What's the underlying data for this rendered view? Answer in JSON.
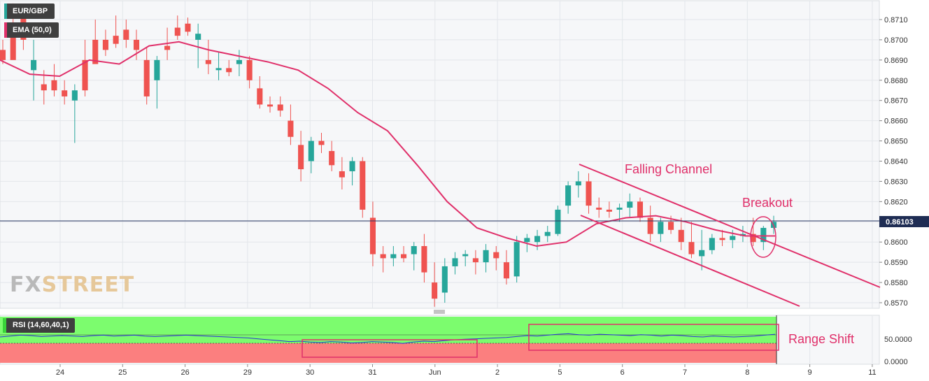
{
  "legend": {
    "symbol": "EUR/GBP",
    "ema_label": "EMA (50,0)",
    "rsi_label": "RSI (14,60,40,1)"
  },
  "logo": {
    "part1": "FX",
    "part2": "STREET"
  },
  "price_badge": "0.86103",
  "annotations": {
    "channel": "Falling Channel",
    "breakout": "Breakout",
    "range_shift": "Range Shift"
  },
  "colors": {
    "up": "#26a69a",
    "down": "#ef5350",
    "ema": "#e0306a",
    "annotation": "#e0306a",
    "rsi_line": "#2c35d6",
    "rsi_bull_zone": "#7cfc6e",
    "rsi_bear_zone": "#fb7f7f",
    "price_line": "#2a3a66"
  },
  "chart_data": [
    {
      "type": "candlestick",
      "title": "EUR/GBP",
      "x_ticks": [
        "24",
        "25",
        "26",
        "29",
        "30",
        "31",
        "Jun",
        "2",
        "5",
        "6",
        "7",
        "8",
        "9",
        "11"
      ],
      "y_ticks": [
        "0.8710",
        "0.8700",
        "0.8690",
        "0.8680",
        "0.8670",
        "0.8660",
        "0.8650",
        "0.8640",
        "0.8630",
        "0.8620",
        "0.8610",
        "0.8600",
        "0.8590",
        "0.8580",
        "0.8570"
      ],
      "ylim": [
        0.8567,
        0.8718
      ],
      "grid": true,
      "last_price": 0.86103,
      "series": [
        {
          "name": "EMA (50,0)",
          "points": [
            [
              "23 00:00",
              0.869
            ],
            [
              "24 00:00",
              0.8683
            ],
            [
              "24 06:00",
              0.8682
            ],
            [
              "25 00:00",
              0.869
            ],
            [
              "25 12:00",
              0.8688
            ],
            [
              "26 00:00",
              0.8697
            ],
            [
              "26 06:00",
              0.8699
            ],
            [
              "26 12:00",
              0.8695
            ],
            [
              "29 00:00",
              0.8692
            ],
            [
              "29 06:00",
              0.8689
            ],
            [
              "29 12:00",
              0.8685
            ],
            [
              "30 00:00",
              0.8676
            ],
            [
              "30 12:00",
              0.8664
            ],
            [
              "31 00:00",
              0.8655
            ],
            [
              "31 12:00",
              0.8638
            ],
            [
              "Jun 00:00",
              0.862
            ],
            [
              "Jun 12:00",
              0.8607
            ],
            [
              "2 00:00",
              0.8602
            ],
            [
              "2 12:00",
              0.8598
            ],
            [
              "5 00:00",
              0.86
            ],
            [
              "5 12:00",
              0.8609
            ],
            [
              "6 00:00",
              0.8612
            ],
            [
              "6 12:00",
              0.8613
            ],
            [
              "7 00:00",
              0.861
            ],
            [
              "7 12:00",
              0.8606
            ],
            [
              "8 00:00",
              0.8603
            ],
            [
              "8 09:00",
              0.8603
            ]
          ]
        }
      ],
      "candles_shape": [
        [
          0.8695,
          0.87,
          0.8688,
          0.869
        ],
        [
          0.8705,
          0.8718,
          0.8696,
          0.869
        ],
        [
          0.8712,
          0.8716,
          0.8695,
          0.87
        ],
        [
          0.8685,
          0.87,
          0.867,
          0.869
        ],
        [
          0.8678,
          0.8685,
          0.8668,
          0.8675
        ],
        [
          0.868,
          0.8688,
          0.8672,
          0.8675
        ],
        [
          0.8675,
          0.868,
          0.8668,
          0.8672
        ],
        [
          0.867,
          0.8678,
          0.8649,
          0.8675
        ],
        [
          0.869,
          0.87,
          0.8672,
          0.8675
        ],
        [
          0.87,
          0.871,
          0.869,
          0.8688
        ],
        [
          0.87,
          0.8705,
          0.8692,
          0.8695
        ],
        [
          0.8702,
          0.8712,
          0.8696,
          0.8698
        ],
        [
          0.8705,
          0.871,
          0.8696,
          0.87
        ],
        [
          0.87,
          0.8705,
          0.869,
          0.8695
        ],
        [
          0.869,
          0.8696,
          0.8668,
          0.8672
        ],
        [
          0.868,
          0.8692,
          0.8666,
          0.869
        ],
        [
          0.8697,
          0.8706,
          0.869,
          0.8695
        ],
        [
          0.8706,
          0.8712,
          0.87,
          0.8702
        ],
        [
          0.8708,
          0.8711,
          0.8702,
          0.8704
        ],
        [
          0.87,
          0.8708,
          0.8686,
          0.8703
        ],
        [
          0.869,
          0.87,
          0.8683,
          0.8688
        ],
        [
          0.8685,
          0.8694,
          0.868,
          0.8686
        ],
        [
          0.8686,
          0.869,
          0.8682,
          0.8684
        ],
        [
          0.8688,
          0.8695,
          0.8682,
          0.869
        ],
        [
          0.869,
          0.8692,
          0.8676,
          0.868
        ],
        [
          0.8676,
          0.8682,
          0.8666,
          0.8668
        ],
        [
          0.8668,
          0.8672,
          0.8664,
          0.8667
        ],
        [
          0.8668,
          0.8672,
          0.8662,
          0.8665
        ],
        [
          0.866,
          0.8668,
          0.8648,
          0.8652
        ],
        [
          0.8648,
          0.8655,
          0.863,
          0.8636
        ],
        [
          0.864,
          0.8652,
          0.8634,
          0.865
        ],
        [
          0.865,
          0.8654,
          0.8644,
          0.8648
        ],
        [
          0.8645,
          0.865,
          0.8635,
          0.8638
        ],
        [
          0.8635,
          0.8642,
          0.8626,
          0.8632
        ],
        [
          0.8635,
          0.8642,
          0.8628,
          0.864
        ],
        [
          0.864,
          0.8642,
          0.8612,
          0.8616
        ],
        [
          0.8612,
          0.862,
          0.8588,
          0.8594
        ],
        [
          0.8594,
          0.8598,
          0.8585,
          0.8592
        ],
        [
          0.8592,
          0.8598,
          0.8588,
          0.8594
        ],
        [
          0.8594,
          0.8598,
          0.859,
          0.8592
        ],
        [
          0.8594,
          0.86,
          0.8586,
          0.8598
        ],
        [
          0.8598,
          0.8604,
          0.858,
          0.8585
        ],
        [
          0.858,
          0.859,
          0.8568,
          0.8572
        ],
        [
          0.8575,
          0.8592,
          0.857,
          0.8588
        ],
        [
          0.8588,
          0.8595,
          0.8584,
          0.8592
        ],
        [
          0.8593,
          0.8596,
          0.8588,
          0.8594
        ],
        [
          0.8592,
          0.8596,
          0.8584,
          0.859
        ],
        [
          0.859,
          0.8599,
          0.8585,
          0.8596
        ],
        [
          0.8595,
          0.8598,
          0.8586,
          0.8592
        ],
        [
          0.859,
          0.8596,
          0.8579,
          0.8582
        ],
        [
          0.8583,
          0.8603,
          0.858,
          0.86
        ],
        [
          0.86,
          0.8604,
          0.8595,
          0.8602
        ],
        [
          0.86,
          0.8606,
          0.8596,
          0.8603
        ],
        [
          0.8603,
          0.8608,
          0.86,
          0.8605
        ],
        [
          0.8604,
          0.8618,
          0.8603,
          0.8616
        ],
        [
          0.8618,
          0.863,
          0.8614,
          0.8628
        ],
        [
          0.8628,
          0.8635,
          0.8622,
          0.863
        ],
        [
          0.863,
          0.8634,
          0.8614,
          0.8618
        ],
        [
          0.8617,
          0.8622,
          0.8612,
          0.8616
        ],
        [
          0.8616,
          0.862,
          0.8612,
          0.8615
        ],
        [
          0.8616,
          0.8619,
          0.861,
          0.8617
        ],
        [
          0.8617,
          0.8624,
          0.8612,
          0.862
        ],
        [
          0.862,
          0.8622,
          0.861,
          0.8612
        ],
        [
          0.8612,
          0.8618,
          0.86,
          0.8604
        ],
        [
          0.8604,
          0.8612,
          0.86,
          0.861
        ],
        [
          0.861,
          0.8613,
          0.8604,
          0.8606
        ],
        [
          0.8606,
          0.8612,
          0.8596,
          0.86
        ],
        [
          0.86,
          0.861,
          0.8592,
          0.8594
        ],
        [
          0.8593,
          0.8606,
          0.8586,
          0.8596
        ],
        [
          0.8596,
          0.8604,
          0.8594,
          0.8602
        ],
        [
          0.8602,
          0.8606,
          0.8598,
          0.8601
        ],
        [
          0.8601,
          0.8606,
          0.8597,
          0.8603
        ],
        [
          0.8603,
          0.8608,
          0.86,
          0.8604
        ],
        [
          0.8604,
          0.8612,
          0.8598,
          0.86
        ],
        [
          0.86,
          0.8608,
          0.8596,
          0.8607
        ],
        [
          0.8607,
          0.8613,
          0.8604,
          0.861
        ]
      ],
      "note_on_candles": "candles_shape rows are [open, high, low, close] read left to right from the price panel"
    },
    {
      "type": "line",
      "title": "RSI (14,60,40,1)",
      "y_ticks": [
        "50.0000",
        "0.0000"
      ],
      "ylim": [
        0,
        100
      ],
      "zones": [
        {
          "name": "bullish",
          "range": [
            60,
            100
          ]
        },
        {
          "name": "bearish",
          "range": [
            0,
            40
          ]
        }
      ],
      "series": [
        {
          "name": "RSI (14,60,40,1)",
          "values": [
            56,
            58,
            60,
            59,
            57,
            58,
            59,
            58,
            57,
            59,
            60,
            58,
            59,
            60,
            58,
            57,
            58,
            59,
            60,
            59,
            58,
            57,
            56,
            55,
            54,
            52,
            50,
            48,
            46,
            47,
            45,
            44,
            46,
            45,
            43,
            44,
            46,
            45,
            44,
            42,
            45,
            47,
            46,
            48,
            50,
            51,
            52,
            53,
            54,
            55,
            57,
            59,
            58,
            60,
            62,
            63,
            61,
            60,
            62,
            61,
            60,
            59,
            61,
            60,
            58,
            60,
            59,
            57,
            56,
            58,
            57,
            56,
            57,
            58,
            60,
            62
          ]
        }
      ]
    }
  ]
}
